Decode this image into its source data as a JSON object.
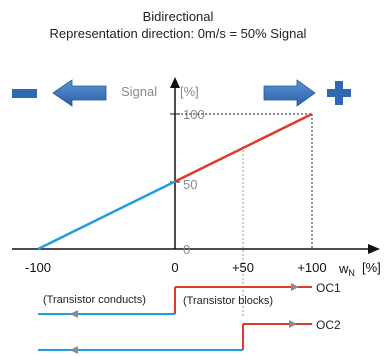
{
  "title": {
    "line1": "Bidirectional",
    "line2": "Representation direction: 0m/s = 50% Signal"
  },
  "legend": {
    "minus_symbol": "minus-icon",
    "plus_symbol": "plus-icon",
    "left_arrow": "arrow-left-icon",
    "right_arrow": "arrow-right-icon"
  },
  "axes": {
    "y_label": "Signal",
    "y_unit": "[%]",
    "x_label": "w",
    "x_subscript": "N",
    "x_unit": "[%]"
  },
  "chart_data": {
    "type": "line",
    "x_ticks": [
      "-100",
      "0",
      "+50",
      "+100"
    ],
    "y_ticks": [
      "0",
      "50",
      "100"
    ],
    "series": [
      {
        "color": "#1e9ee0",
        "x": [
          -100,
          0
        ],
        "y": [
          0,
          50
        ]
      },
      {
        "color": "#e03a2a",
        "x": [
          0,
          100
        ],
        "y": [
          50,
          100
        ]
      }
    ],
    "xlim": [
      -100,
      100
    ],
    "ylim": [
      0,
      100
    ]
  },
  "outputs": {
    "oc1": "OC1",
    "oc2": "OC2",
    "transistor_conducts": "(Transistor conducts)",
    "transistor_blocks": "(Transistor blocks)"
  },
  "colors": {
    "negative": "#1e9ee0",
    "positive": "#e03a2a",
    "arrow_fill": "#3a78c3",
    "arrow_dark": "#27569a",
    "symbol": "#2f69b5"
  }
}
